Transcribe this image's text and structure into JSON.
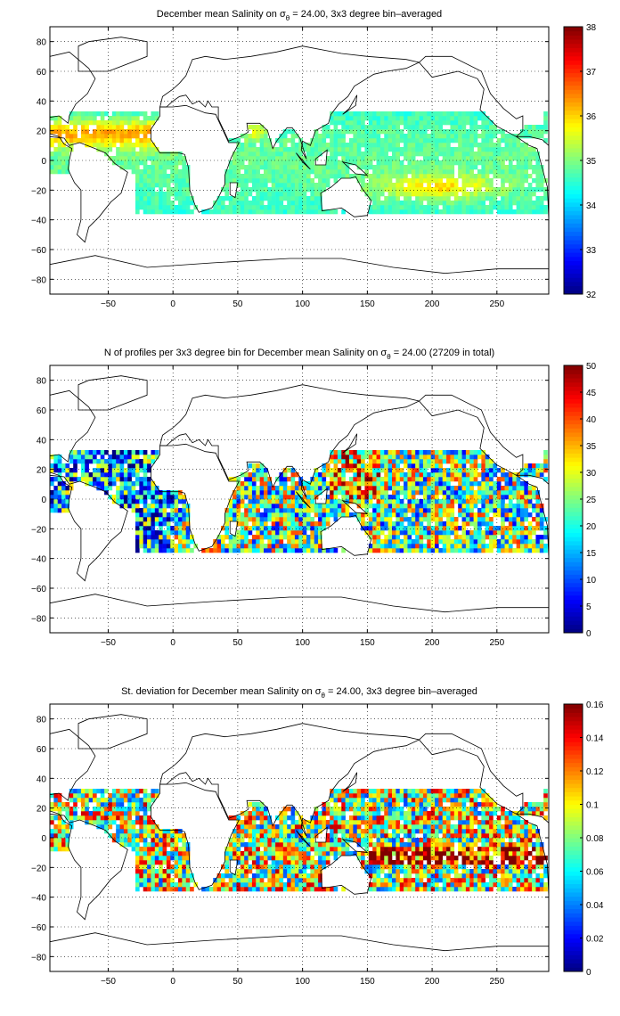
{
  "chart_data": [
    {
      "type": "heatmap",
      "title": "December mean Salinity on σ_θ = 24.00, 3x3 degree bin–averaged",
      "title_parts": {
        "pre": "December mean Salinity on ",
        "sym": "σ",
        "sub": "θ",
        "post": " = 24.00, 3x3 degree bin–averaged"
      },
      "xlim": [
        -95,
        290
      ],
      "ylim": [
        -90,
        90
      ],
      "xticks": [
        -50,
        0,
        50,
        100,
        150,
        200,
        250
      ],
      "yticks": [
        -80,
        -60,
        -40,
        -20,
        0,
        20,
        40,
        60,
        80
      ],
      "colorbar": {
        "min": 32,
        "max": 38,
        "ticks": [
          32,
          33,
          34,
          35,
          36,
          37,
          38
        ]
      },
      "colormap": "jet",
      "grid": true
    },
    {
      "type": "heatmap",
      "title": "N of profiles per 3x3 degree bin for December mean Salinity on σ_θ = 24.00 (27209 in total)",
      "title_parts": {
        "pre": "N of profiles per 3x3 degree bin for December mean Salinity on ",
        "sym": "σ",
        "sub": "θ",
        "post": " = 24.00 (27209 in total)"
      },
      "xlim": [
        -95,
        290
      ],
      "ylim": [
        -90,
        90
      ],
      "xticks": [
        -50,
        0,
        50,
        100,
        150,
        200,
        250
      ],
      "yticks": [
        -80,
        -60,
        -40,
        -20,
        0,
        20,
        40,
        60,
        80
      ],
      "colorbar": {
        "min": 0,
        "max": 50,
        "ticks": [
          0,
          5,
          10,
          15,
          20,
          25,
          30,
          35,
          40,
          45,
          50
        ]
      },
      "colormap": "jet",
      "grid": true
    },
    {
      "type": "heatmap",
      "title": "St. deviation for December mean Salinity on σ_θ = 24.00, 3x3 degree bin–averaged",
      "title_parts": {
        "pre": "St. deviation for December mean Salinity on ",
        "sym": "σ",
        "sub": "θ",
        "post": " = 24.00, 3x3 degree bin–averaged"
      },
      "xlim": [
        -95,
        290
      ],
      "ylim": [
        -90,
        90
      ],
      "xticks": [
        -50,
        0,
        50,
        100,
        150,
        200,
        250
      ],
      "yticks": [
        -80,
        -60,
        -40,
        -20,
        0,
        20,
        40,
        60,
        80
      ],
      "colorbar": {
        "min": 0,
        "max": 0.16,
        "ticks": [
          "0",
          "0.02",
          "0.04",
          "0.06",
          "0.08",
          "0.1",
          "0.12",
          "0.14",
          "0.16"
        ]
      },
      "colormap": "jet",
      "grid": true
    }
  ]
}
